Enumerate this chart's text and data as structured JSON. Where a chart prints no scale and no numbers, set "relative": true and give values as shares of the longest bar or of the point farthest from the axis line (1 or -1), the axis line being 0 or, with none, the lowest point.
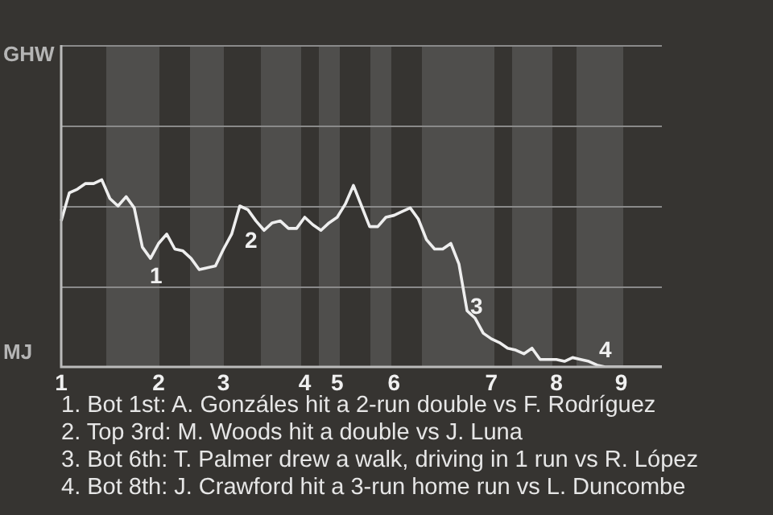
{
  "chart_data": {
    "type": "line",
    "relative": true,
    "categories": [
      "1",
      null,
      null,
      null,
      null,
      null,
      null,
      null,
      null,
      null,
      null,
      null,
      "2",
      null,
      null,
      null,
      null,
      null,
      null,
      null,
      "3",
      null,
      null,
      null,
      null,
      null,
      null,
      null,
      null,
      null,
      "4",
      null,
      null,
      null,
      "5",
      null,
      null,
      null,
      null,
      null,
      null,
      "6",
      null,
      null,
      null,
      null,
      null,
      null,
      null,
      null,
      null,
      null,
      null,
      "7",
      null,
      null,
      null,
      null,
      null,
      null,
      null,
      "8",
      null,
      null,
      null,
      null,
      null,
      null,
      null,
      "9",
      null,
      null,
      null,
      null,
      null
    ],
    "series": [
      {
        "color": "#eeeeee",
        "values": [
          0.78,
          0.93,
          0.95,
          0.98,
          0.98,
          1,
          0.9,
          0.86,
          0.91,
          0.85,
          0.64,
          0.58,
          0.66,
          0.71,
          0.63,
          0.62,
          0.58,
          0.52,
          0.53,
          0.54,
          0.63,
          0.71,
          0.86,
          0.84,
          0.78,
          0.73,
          0.77,
          0.78,
          0.74,
          0.74,
          0.8,
          0.76,
          0.73,
          0.77,
          0.8,
          0.87,
          0.97,
          0.86,
          0.75,
          0.75,
          0.8,
          0.81,
          0.83,
          0.85,
          0.79,
          0.68,
          0.63,
          0.63,
          0.66,
          0.55,
          0.3,
          0.26,
          0.18,
          0.15,
          0.13,
          0.1,
          0.09,
          0.07,
          0.1,
          0.04,
          0.04,
          0.04,
          0.03,
          0.05,
          0.04,
          0.03,
          0.01,
          0,
          0,
          0,
          0,
          0,
          0,
          0,
          0
        ]
      }
    ],
    "ref_lines": [
      {
        "axis": "y",
        "value": 0.43,
        "color": "#8a8a8a"
      },
      {
        "axis": "y",
        "value": 0.86,
        "color": "#8a8a8a"
      },
      {
        "axis": "y",
        "value": 1.29,
        "color": "#8a8a8a"
      }
    ],
    "marker": "none",
    "line_style": "solid",
    "annotations": [
      "GHW",
      "MJ",
      "1",
      "2",
      "3",
      "4",
      "1. Bot 1st: A. Gonzáles hit a 2-run double vs F. Rodríguez",
      "2. Top 3rd: M. Woods hit a double vs J. Luna",
      "3. Bot 6th: T. Palmer drew a walk, driving in 1 run vs R. López",
      "4. Bot 8th: J. Crawford hit a 3-run home run vs L. Duncombe"
    ]
  }
}
